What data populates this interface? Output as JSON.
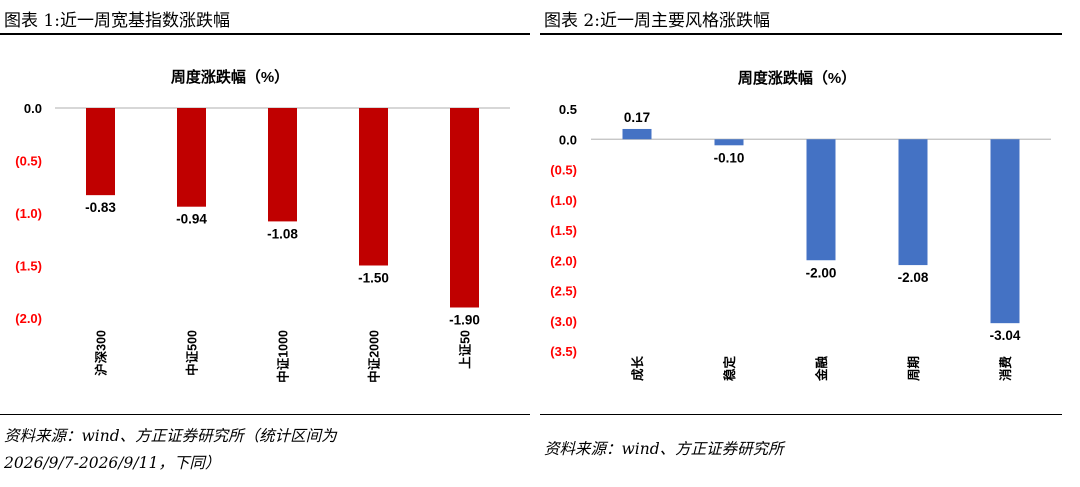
{
  "left": {
    "title": "图表 1:近一周宽基指数涨跌幅",
    "source_line1": "资料来源：wind、方正证券研究所（统计区间为",
    "source_line2": "2026/9/7-2026/9/11，下同）"
  },
  "right": {
    "title": "图表 2:近一周主要风格涨跌幅",
    "source_line1": "资料来源：wind、方正证券研究所"
  },
  "colors": {
    "left_bars": "#c00000",
    "right_bars": "#4472c4",
    "negative_ticks": "#ff0000"
  },
  "chart_data": [
    {
      "type": "bar",
      "title": "周度涨跌幅（%）",
      "categories": [
        "沪深300",
        "中证500",
        "中证1000",
        "中证2000",
        "上证50"
      ],
      "values": [
        -0.83,
        -0.94,
        -1.08,
        -1.5,
        -1.9
      ],
      "value_labels": [
        "-0.83",
        "-0.94",
        "-1.08",
        "-1.50",
        "-1.90"
      ],
      "yticks": [
        "0.0",
        "(0.5)",
        "(1.0)",
        "(1.5)",
        "(2.0)"
      ],
      "ylim": [
        -2.0,
        0.0
      ],
      "grid": false,
      "legend": "none"
    },
    {
      "type": "bar",
      "title": "周度涨跌幅（%）",
      "categories": [
        "成长",
        "稳定",
        "金融",
        "周期",
        "消费"
      ],
      "values": [
        0.17,
        -0.1,
        -2.0,
        -2.08,
        -3.04
      ],
      "value_labels": [
        "0.17",
        "-0.10",
        "-2.00",
        "-2.08",
        "-3.04"
      ],
      "yticks": [
        "0.5",
        "0.0",
        "(0.5)",
        "(1.0)",
        "(1.5)",
        "(2.0)",
        "(2.5)",
        "(3.0)",
        "(3.5)"
      ],
      "ylim": [
        -3.5,
        0.5
      ],
      "grid": false,
      "legend": "none"
    }
  ]
}
